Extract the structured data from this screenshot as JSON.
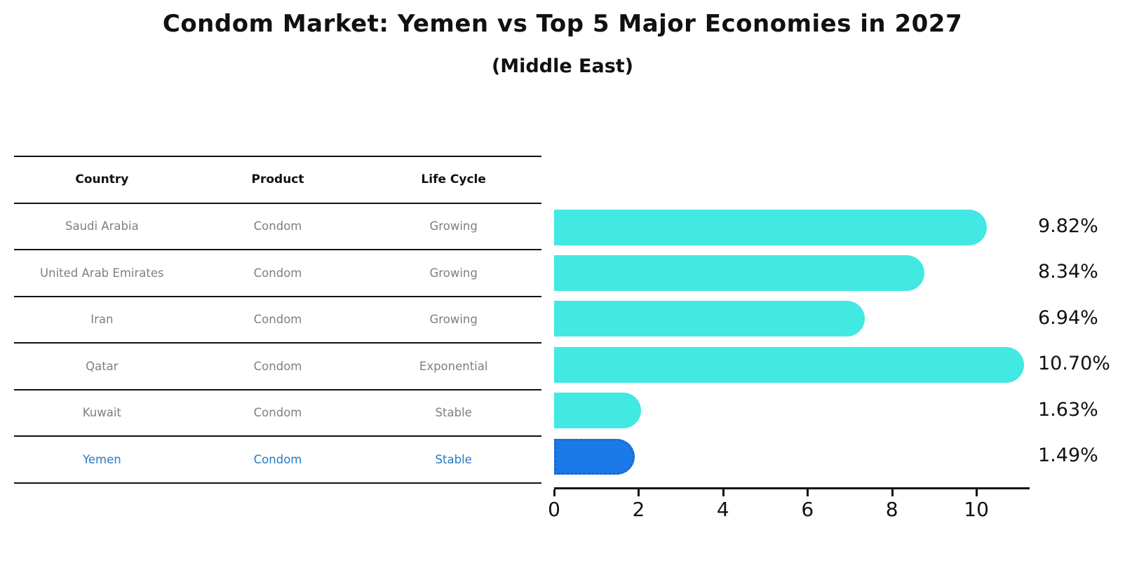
{
  "chart_data": {
    "type": "bar",
    "orientation": "horizontal",
    "title": "Condom Market: Yemen vs Top 5 Major Economies in 2027",
    "subtitle": "(Middle East)",
    "categories": [
      "Saudi Arabia",
      "United Arab Emirates",
      "Iran",
      "Qatar",
      "Kuwait",
      "Yemen"
    ],
    "values": [
      9.82,
      8.34,
      6.94,
      10.7,
      1.63,
      1.49
    ],
    "value_labels": [
      "9.82%",
      "8.34%",
      "6.94%",
      "10.70%",
      "1.63%",
      "1.49%"
    ],
    "xticks": [
      0,
      2,
      4,
      6,
      8,
      10
    ],
    "xlim": [
      0,
      11.26
    ],
    "xlabel": "",
    "ylabel": "",
    "grid": false,
    "legend": "none",
    "bar_color": "#42e8e2",
    "highlight_color": "#1b7ae8",
    "highlight_index": 5
  },
  "table": {
    "headers": [
      "Country",
      "Product",
      "Life Cycle"
    ],
    "rows": [
      {
        "country": "Saudi Arabia",
        "product": "Condom",
        "life_cycle": "Growing",
        "highlighted": false
      },
      {
        "country": "United Arab Emirates",
        "product": "Condom",
        "life_cycle": "Growing",
        "highlighted": false
      },
      {
        "country": "Iran",
        "product": "Condom",
        "life_cycle": "Growing",
        "highlighted": false
      },
      {
        "country": "Qatar",
        "product": "Condom",
        "life_cycle": "Exponential",
        "highlighted": false
      },
      {
        "country": "Kuwait",
        "product": "Condom",
        "life_cycle": "Stable",
        "highlighted": false
      },
      {
        "country": "Yemen",
        "product": "Condom",
        "life_cycle": "Stable",
        "highlighted": true
      }
    ]
  },
  "colors": {
    "bar": "#42e8e2",
    "highlight_bar": "#1b7ae8",
    "highlight_text": "#2879c8",
    "table_text": "#7f7f7f",
    "axis": "#111111"
  }
}
